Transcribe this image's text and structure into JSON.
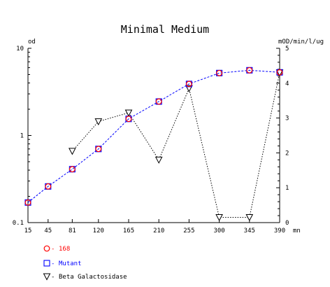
{
  "chart_data": {
    "type": "line",
    "title": "Minimal Medium",
    "ylabel_left": "od",
    "ylabel_right": "mOD/min/l/ug",
    "x_unit_label": "mn",
    "x": [
      15,
      45,
      81,
      120,
      165,
      210,
      255,
      300,
      345,
      390
    ],
    "x_tick_labels": [
      "15",
      "45",
      "81",
      "120",
      "165",
      "210",
      "255",
      "300",
      "345",
      "390"
    ],
    "y_left": {
      "scale": "log",
      "range": [
        0.1,
        10
      ],
      "tick_values": [
        0.1,
        1,
        10
      ],
      "tick_labels": [
        "0.1",
        "1",
        "10"
      ]
    },
    "y_right": {
      "scale": "linear",
      "range": [
        0,
        5
      ],
      "tick_values": [
        0,
        1,
        2,
        3,
        4,
        5
      ],
      "tick_labels": [
        "0",
        "1",
        "2",
        "3",
        "4",
        "5"
      ]
    },
    "grid": false,
    "legend_placement": "bottom-left",
    "series": [
      {
        "name": "168",
        "axis": "left",
        "marker": "circle",
        "color": "#ff0000",
        "line": "none",
        "y": [
          0.17,
          0.26,
          0.41,
          0.7,
          1.55,
          2.45,
          3.9,
          5.2,
          5.6,
          5.3
        ]
      },
      {
        "name": "Mutant",
        "axis": "left",
        "marker": "square",
        "color": "#0000ff",
        "line": "dashed",
        "y": [
          0.17,
          0.26,
          0.41,
          0.7,
          1.55,
          2.45,
          3.9,
          5.2,
          5.6,
          5.3
        ]
      },
      {
        "name": "Beta Galactosidase",
        "axis": "right",
        "marker": "triangle-down",
        "color": "#000000",
        "line": "dotted",
        "x": [
          81,
          120,
          165,
          210,
          255,
          300,
          345,
          390
        ],
        "y": [
          2.05,
          2.9,
          3.15,
          1.8,
          3.85,
          0.15,
          0.15,
          4.3
        ]
      }
    ]
  }
}
